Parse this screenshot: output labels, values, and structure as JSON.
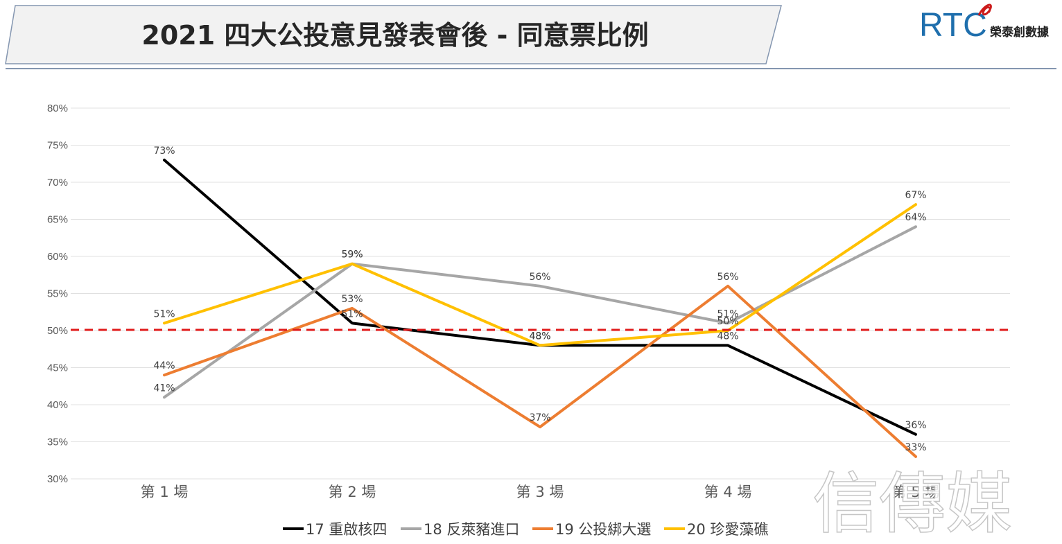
{
  "header": {
    "title": "2021 四大公投意見發表會後 - 同意票比例",
    "logo_letters": "RTC",
    "logo_caption": "榮泰創數據"
  },
  "watermark": "信傳媒",
  "colors": {
    "title_band": "#f2f2f2",
    "band_border": "#8496b0",
    "threshold_line": "#e01b1b",
    "gridline": "#e0e0e0",
    "logo_blue": "#1f6fad",
    "logo_red": "#cc1b1b"
  },
  "chart_data": {
    "type": "line",
    "title": "2021 四大公投意見發表會後 - 同意票比例",
    "xlabel": "",
    "ylabel": "",
    "categories": [
      "第 1 場",
      "第 2 場",
      "第 3 場",
      "第 4 場",
      "第 5 場"
    ],
    "y_ticks": [
      "30%",
      "35%",
      "40%",
      "45%",
      "50%",
      "55%",
      "60%",
      "65%",
      "70%",
      "75%",
      "80%"
    ],
    "ylim": [
      30,
      80
    ],
    "grid": true,
    "legend_position": "bottom",
    "reference_line": {
      "value": 50,
      "style": "dashed",
      "color": "#e01b1b"
    },
    "series": [
      {
        "name": "17 重啟核四",
        "color": "#000000",
        "values": [
          73,
          51,
          48,
          48,
          36
        ],
        "labels": [
          "73%",
          "51%",
          "48%",
          "48%",
          "36%"
        ]
      },
      {
        "name": "18 反萊豬進口",
        "color": "#a6a6a6",
        "values": [
          41,
          59,
          56,
          51,
          64
        ],
        "labels": [
          "41%",
          "59%",
          "56%",
          "51%",
          "64%"
        ]
      },
      {
        "name": "19 公投綁大選",
        "color": "#ed7d31",
        "values": [
          44,
          53,
          37,
          56,
          33
        ],
        "labels": [
          "44%",
          "53%",
          "37%",
          "56%",
          "33%"
        ]
      },
      {
        "name": "20 珍愛藻礁",
        "color": "#ffc000",
        "values": [
          51,
          59,
          48,
          50,
          67
        ],
        "labels": [
          "51%",
          "59%",
          "48%",
          "50%",
          "67%"
        ]
      }
    ]
  }
}
